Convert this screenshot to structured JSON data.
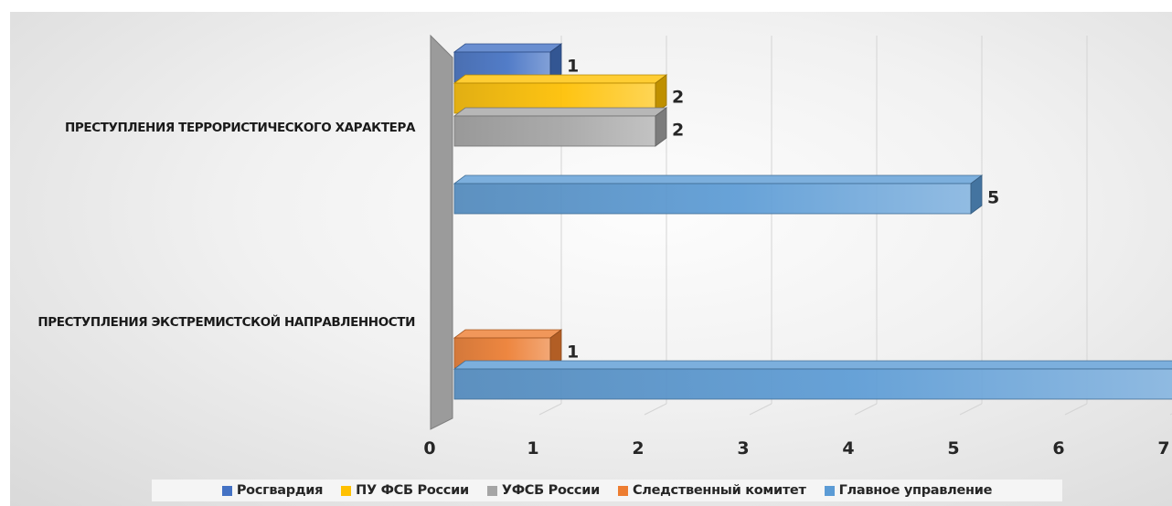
{
  "chart_data": {
    "type": "bar",
    "orientation": "horizontal",
    "style": "3d-clustered",
    "categories": [
      "ПРЕСТУПЛЕНИЯ ТЕРРОРИСТИЧЕСКОГО ХАРАКТЕРА",
      "ПРЕСТУПЛЕНИЯ ЭКСТРЕМИСТСКОЙ НАПРАВЛЕННОСТИ"
    ],
    "series": [
      {
        "name": "Росгвардия",
        "color": "#4472c4",
        "values": [
          1,
          null
        ]
      },
      {
        "name": "ПУ ФСБ России",
        "color": "#ffc000",
        "values": [
          2,
          null
        ]
      },
      {
        "name": "УФСБ России",
        "color": "#a5a5a5",
        "values": [
          2,
          null
        ]
      },
      {
        "name": "Следственный комитет",
        "color": "#ed7d31",
        "values": [
          null,
          1
        ]
      },
      {
        "name": "Главное управление",
        "color": "#5b9bd5",
        "values": [
          5,
          7
        ]
      }
    ],
    "xlim": [
      0,
      7
    ],
    "x_ticks": [
      "0",
      "1",
      "2",
      "3",
      "4",
      "5",
      "6",
      "7"
    ],
    "grid": true,
    "legend_position": "bottom",
    "background_color": "#eeeeee"
  }
}
